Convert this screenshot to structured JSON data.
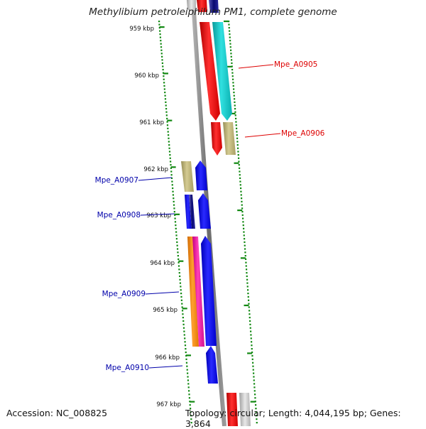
{
  "title": "Methylibium petroleiphilum PM1, complete genome",
  "accession": "Accession: NC_008825",
  "topology": "Topology: circular; Length: 4,044,195 bp; Genes: 3,864",
  "ticks": [
    "959 kbp",
    "960 kbp",
    "961 kbp",
    "962 kbp",
    "963 kbp",
    "964 kbp",
    "965 kbp",
    "966 kbp",
    "967 kbp"
  ],
  "genes": [
    {
      "label": "Mpe_A0905",
      "strand": "forward",
      "color": "#dd0000"
    },
    {
      "label": "Mpe_A0906",
      "strand": "forward",
      "color": "#dd0000"
    },
    {
      "label": "Mpe_A0907",
      "strand": "reverse",
      "color": "#0000aa"
    },
    {
      "label": "Mpe_A0908",
      "strand": "reverse",
      "color": "#0000aa"
    },
    {
      "label": "Mpe_A0909",
      "strand": "reverse",
      "color": "#0000aa"
    },
    {
      "label": "Mpe_A0910",
      "strand": "reverse",
      "color": "#0000aa"
    }
  ],
  "colors": {
    "backbone": "#8a8a8a",
    "tick": "#118811",
    "red": "#ff1010",
    "cyan": "#12c8c8",
    "khaki": "#b8ae72",
    "blue": "#1010ee",
    "navy": "#0a0a90",
    "orange": "#f58a10",
    "magenta": "#ee1aa0"
  }
}
